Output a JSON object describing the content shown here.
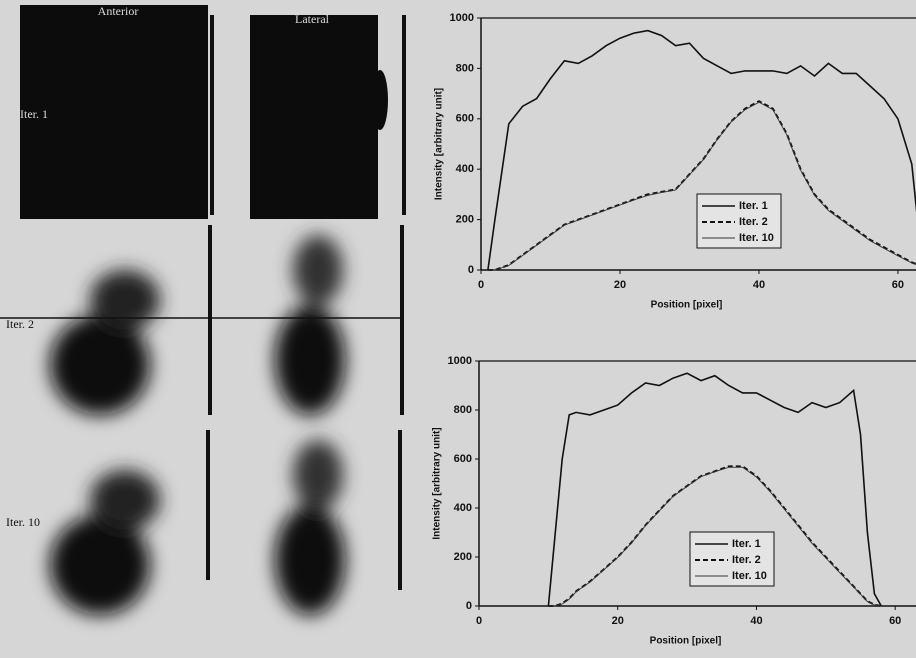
{
  "image_panel": {
    "column_labels": [
      "Anterior",
      "Lateral"
    ],
    "row_labels": [
      "Iter. 1",
      "Iter. 2",
      "Iter. 10"
    ]
  },
  "chart_data": [
    {
      "type": "line",
      "y_label": "Intensity [arbitrary unit]",
      "x_label": "Position [pixel]",
      "x": [
        1,
        2,
        4,
        6,
        8,
        10,
        12,
        14,
        16,
        18,
        20,
        22,
        24,
        26,
        28,
        30,
        32,
        34,
        36,
        38,
        40,
        42,
        44,
        46,
        48,
        50,
        52,
        54,
        56,
        58,
        60,
        62,
        63
      ],
      "series": [
        {
          "name": "Iter. 1",
          "color": "#111111",
          "style": "solid",
          "values": [
            0,
            200,
            580,
            650,
            680,
            760,
            830,
            820,
            850,
            890,
            920,
            940,
            950,
            930,
            890,
            900,
            840,
            810,
            780,
            790,
            790,
            790,
            780,
            810,
            770,
            820,
            780,
            780,
            730,
            680,
            600,
            420,
            150
          ]
        },
        {
          "name": "Iter. 2",
          "color": "#111111",
          "style": "dashed",
          "values": [
            0,
            0,
            20,
            60,
            100,
            140,
            180,
            200,
            220,
            240,
            260,
            280,
            300,
            310,
            320,
            380,
            440,
            520,
            590,
            640,
            670,
            640,
            540,
            400,
            300,
            240,
            200,
            160,
            120,
            90,
            60,
            30,
            20
          ]
        },
        {
          "name": "Iter. 10",
          "color": "#333333",
          "style": "thin",
          "values": [
            0,
            0,
            18,
            58,
            98,
            138,
            178,
            198,
            218,
            238,
            258,
            278,
            296,
            308,
            318,
            378,
            438,
            518,
            588,
            636,
            666,
            636,
            536,
            396,
            296,
            236,
            196,
            156,
            116,
            86,
            56,
            28,
            18
          ]
        }
      ],
      "xlim": [
        0,
        62.6
      ],
      "ylim": [
        0,
        1000
      ],
      "xticks": [
        0,
        20,
        40,
        60
      ],
      "yticks": [
        0,
        200,
        400,
        600,
        800,
        1000
      ]
    },
    {
      "type": "line",
      "y_label": "Intensity [arbitrary unit]",
      "x_label": "Position [pixel]",
      "x": [
        10,
        11,
        12,
        13,
        14,
        16,
        18,
        20,
        22,
        24,
        26,
        28,
        30,
        32,
        34,
        36,
        38,
        40,
        42,
        44,
        46,
        48,
        50,
        52,
        54,
        55,
        56,
        57,
        58
      ],
      "series": [
        {
          "name": "Iter. 1",
          "color": "#111111",
          "style": "solid",
          "values": [
            0,
            300,
            600,
            780,
            790,
            780,
            800,
            820,
            870,
            910,
            900,
            930,
            950,
            920,
            940,
            900,
            870,
            870,
            840,
            810,
            790,
            830,
            810,
            830,
            880,
            700,
            300,
            50,
            0
          ]
        },
        {
          "name": "Iter. 2",
          "color": "#111111",
          "style": "dashed",
          "values": [
            0,
            0,
            10,
            30,
            60,
            100,
            150,
            200,
            260,
            330,
            390,
            450,
            490,
            530,
            550,
            570,
            570,
            530,
            470,
            400,
            330,
            260,
            200,
            140,
            80,
            50,
            20,
            5,
            0
          ]
        },
        {
          "name": "Iter. 10",
          "color": "#333333",
          "style": "thin",
          "values": [
            0,
            0,
            8,
            28,
            58,
            98,
            148,
            198,
            258,
            328,
            388,
            448,
            488,
            528,
            548,
            566,
            566,
            526,
            466,
            396,
            326,
            256,
            196,
            136,
            78,
            48,
            18,
            4,
            0
          ]
        }
      ],
      "xlim": [
        0,
        63
      ],
      "ylim": [
        0,
        1000
      ],
      "xticks": [
        0,
        20,
        40,
        60
      ],
      "yticks": [
        0,
        200,
        400,
        600,
        800,
        1000
      ]
    }
  ]
}
